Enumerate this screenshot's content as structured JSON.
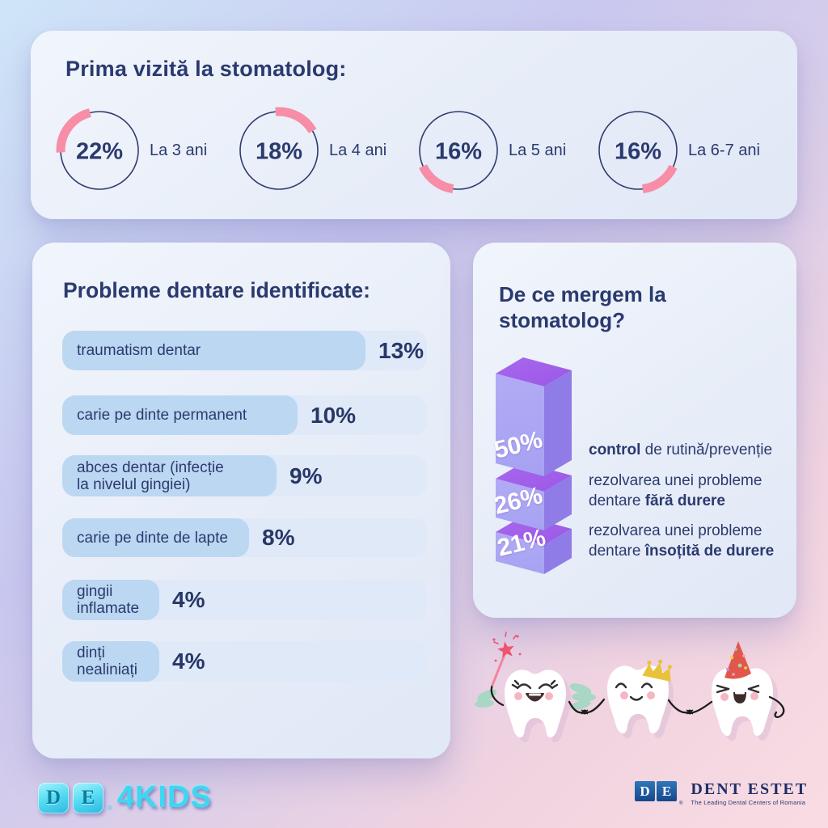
{
  "first_visit": {
    "title": "Prima vizită la stomatolog:",
    "accent_color": "#f78da7",
    "ring_color": "#2e3d6e",
    "donuts": [
      {
        "value": "22%",
        "percent": 22,
        "label": "La 3 ani",
        "arc_start_deg": 267,
        "arc_end_deg": 346
      },
      {
        "value": "18%",
        "percent": 18,
        "label": "La 4 ani",
        "arc_start_deg": 355,
        "arc_end_deg": 420
      },
      {
        "value": "16%",
        "percent": 16,
        "label": "La 5 ani",
        "arc_start_deg": 188,
        "arc_end_deg": 246
      },
      {
        "value": "16%",
        "percent": 16,
        "label": "La 6-7 ani",
        "arc_start_deg": 115,
        "arc_end_deg": 173
      }
    ]
  },
  "problems": {
    "title": "Probleme dentare identificate:",
    "track_color": "#dfe9f7",
    "fill_color": "#bcd7f2",
    "bars": [
      {
        "label_lines": [
          "traumatism dentar"
        ],
        "value": "13%",
        "percent": 13
      },
      {
        "label_lines": [
          "carie pe dinte permanent"
        ],
        "value": "10%",
        "percent": 10
      },
      {
        "label_lines": [
          "abces dentar (infecție",
          "la nivelul gingiei)"
        ],
        "value": "9%",
        "percent": 9
      },
      {
        "label_lines": [
          "carie pe dinte de lapte"
        ],
        "value": "8%",
        "percent": 8
      },
      {
        "label_lines": [
          "gingii",
          "inflamate"
        ],
        "value": "4%",
        "percent": 4
      },
      {
        "label_lines": [
          "dinți",
          "nealiniați"
        ],
        "value": "4%",
        "percent": 4
      }
    ]
  },
  "reasons": {
    "title_lines": [
      "De ce mergem la",
      "stomatolog?"
    ],
    "box_colors": {
      "top": "#9a58e6",
      "front": "#a6a2f2",
      "side": "#8f7ce6"
    },
    "bars": [
      {
        "value": "50%",
        "percent": 50,
        "label_segments": [
          {
            "text": "control",
            "bold": true
          },
          {
            "text": " de rutină/prevenție",
            "bold": false
          }
        ]
      },
      {
        "value": "26%",
        "percent": 26,
        "label_segments": [
          {
            "text": "rezolvarea unei probleme dentare ",
            "bold": false
          },
          {
            "text": "fără durere",
            "bold": true
          }
        ]
      },
      {
        "value": "21%",
        "percent": 21,
        "label_segments": [
          {
            "text": "rezolvarea unei probleme dentare ",
            "bold": false
          },
          {
            "text": "însoțită de durere",
            "bold": true
          }
        ]
      }
    ]
  },
  "footer": {
    "kids_logo": {
      "letters": [
        "D",
        "E"
      ],
      "reg": "®",
      "suffix": "4KIDS"
    },
    "dent_estet": {
      "letters": [
        "D",
        "E"
      ],
      "reg": "®",
      "name": "DENT ESTET",
      "tagline": "The Leading Dental Centers of Romania"
    }
  },
  "characters": {
    "names": [
      "tooth-fairy",
      "tooth-with-crown",
      "tooth-with-party-hat"
    ]
  },
  "chart_data": [
    {
      "type": "pie",
      "title": "Prima vizită la stomatolog:",
      "categories": [
        "La 3 ani",
        "La 4 ani",
        "La 5 ani",
        "La 6-7 ani"
      ],
      "values": [
        22,
        18,
        16,
        16
      ],
      "unit": "%",
      "style": "donut-rings",
      "accent_color": "#f78da7"
    },
    {
      "type": "bar",
      "title": "Probleme dentare identificate:",
      "categories": [
        "traumatism dentar",
        "carie pe dinte permanent",
        "abces dentar (infecție la nivelul gingiei)",
        "carie pe dinte de lapte",
        "gingii inflamate",
        "dinți nealiniați"
      ],
      "values": [
        13,
        10,
        9,
        8,
        4,
        4
      ],
      "unit": "%",
      "orientation": "horizontal"
    },
    {
      "type": "bar",
      "title": "De ce mergem la stomatolog?",
      "categories": [
        "control de rutină/prevenție",
        "rezolvarea unei probleme dentare fără durere",
        "rezolvarea unei probleme dentare însoțită de durere"
      ],
      "values": [
        50,
        26,
        21
      ],
      "unit": "%",
      "orientation": "vertical-3d"
    }
  ]
}
